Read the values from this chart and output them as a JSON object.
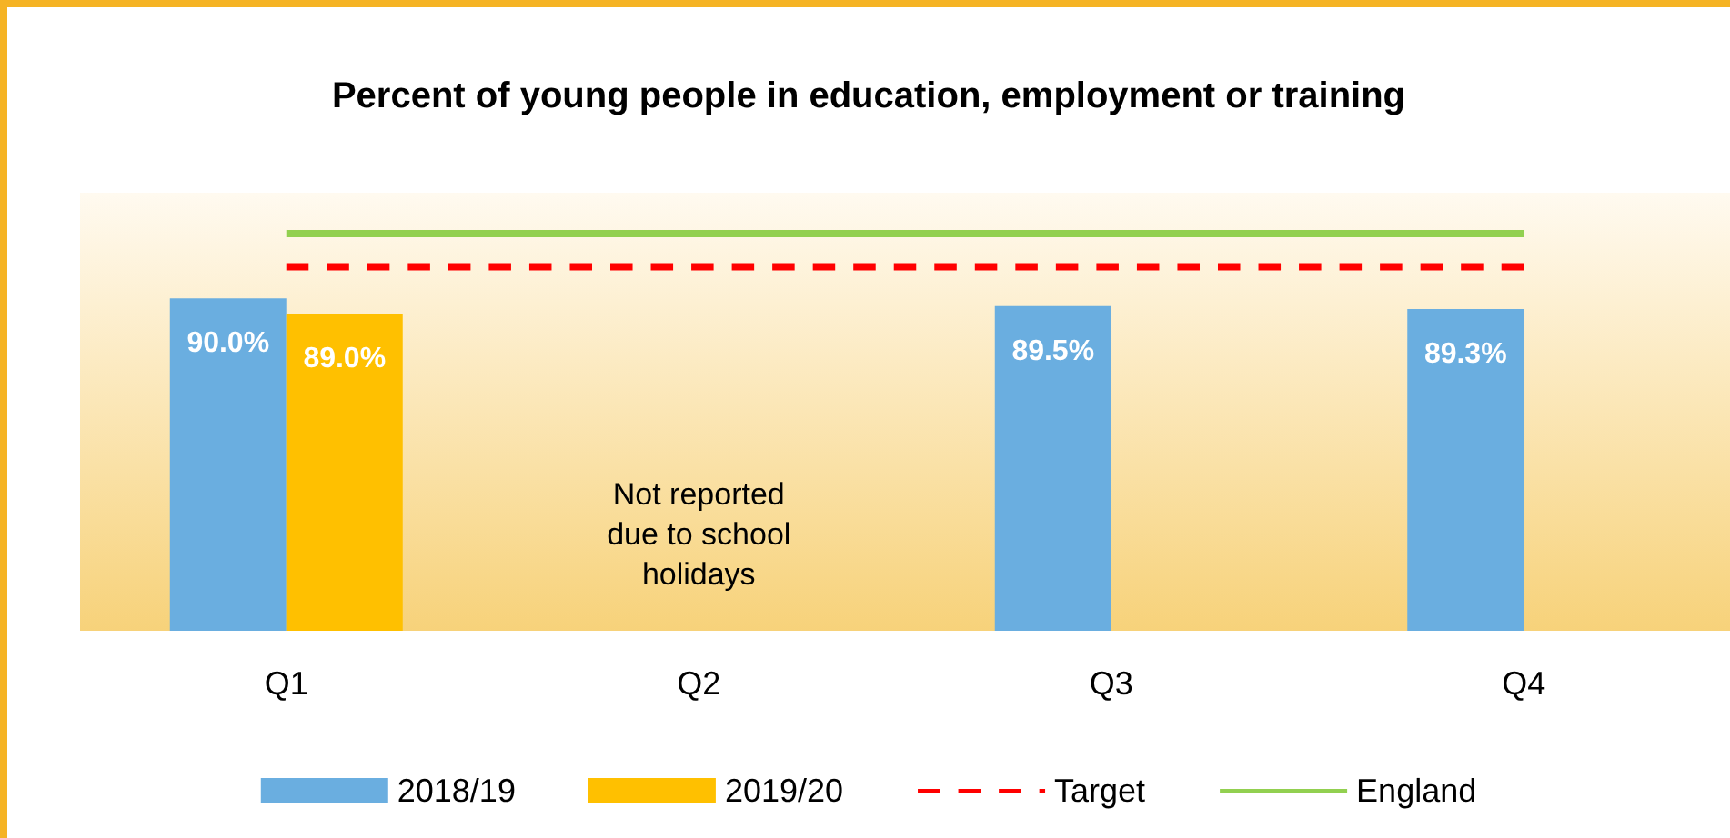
{
  "chart_data": {
    "type": "bar",
    "title": "Percent of young people in education, employment or training",
    "categories": [
      "Q1",
      "Q2",
      "Q3",
      "Q4"
    ],
    "series": [
      {
        "name": "2018/19",
        "color": "#6aaee0",
        "values": [
          90.0,
          null,
          89.5,
          89.3
        ],
        "value_labels": [
          "90.0%",
          null,
          "89.5%",
          "89.3%"
        ]
      },
      {
        "name": "2019/20",
        "color": "#ffc000",
        "values": [
          89.0,
          null,
          null,
          null
        ],
        "value_labels": [
          "89.0%",
          null,
          null,
          null
        ]
      },
      {
        "name": "Target",
        "type": "line",
        "color": "#ff0000",
        "line_style": "dashed",
        "values": [
          92.1,
          92.1,
          92.1,
          92.1
        ]
      },
      {
        "name": "England",
        "type": "line",
        "color": "#92d050",
        "line_style": "solid",
        "values": [
          94.3,
          94.3,
          94.3,
          94.3
        ]
      }
    ],
    "annotations": [
      "Not reported\ndue to school\nholidays"
    ],
    "ylim": [
      68,
      97
    ],
    "grid": false,
    "legend": "bottom",
    "marker": "none"
  }
}
